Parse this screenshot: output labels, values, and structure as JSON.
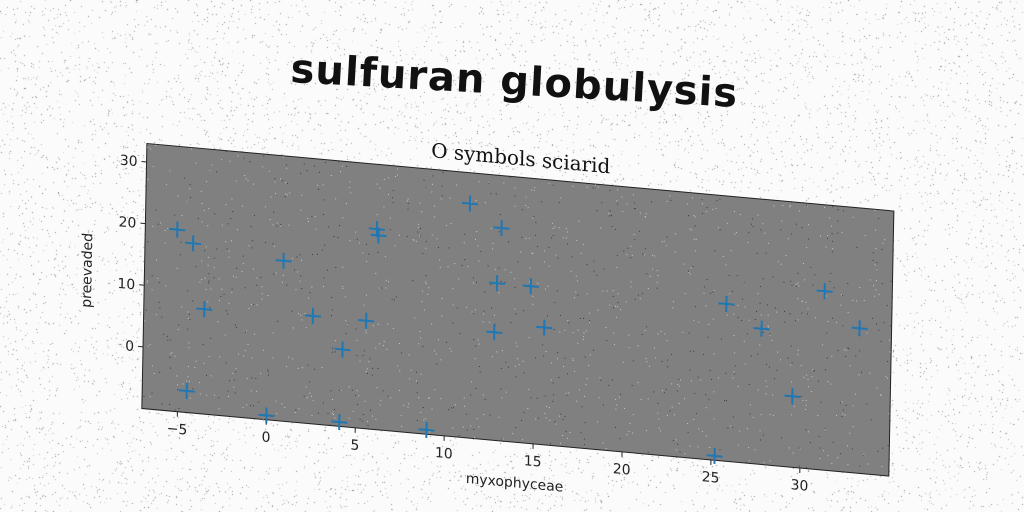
{
  "title": "sulfuran globulysis",
  "chart_data": {
    "type": "scatter",
    "title": "O symbols sciarid",
    "xlabel": "myxophyceae",
    "ylabel": "preevaded",
    "xlim": [
      -7,
      35
    ],
    "ylim": [
      -10,
      33
    ],
    "xticks": [
      -5,
      0,
      5,
      10,
      15,
      20,
      25,
      30
    ],
    "yticks": [
      0,
      10,
      20,
      30
    ],
    "xtick_labels": [
      "−5",
      "0",
      "5",
      "10",
      "15",
      "20",
      "25",
      "30"
    ],
    "ytick_labels": [
      "0",
      "10",
      "20",
      "30"
    ],
    "marker": "+",
    "marker_color": "#1f77b4",
    "plot_background": "#808080",
    "grid": false,
    "series": [
      {
        "x": [
          -5.2,
          -4.3,
          -3.6,
          0.8,
          2.5,
          4.2,
          5.5,
          6.0,
          6.1,
          11.2,
          12.7,
          12.8,
          13.0,
          14.7,
          15.5,
          25.7,
          27.7,
          29.5,
          31.2,
          33.2,
          -4.5,
          0.0,
          4.1,
          9.0,
          25.2
        ],
        "y": [
          19.5,
          17.5,
          7.0,
          16.0,
          7.5,
          2.5,
          7.5,
          22.5,
          21.5,
          28.0,
          7.5,
          15.5,
          24.5,
          15.5,
          9.0,
          15.5,
          12.0,
          1.5,
          19.0,
          13.5,
          -6.5,
          -9.3,
          -9.3,
          -9.3,
          -9.3
        ]
      }
    ]
  }
}
